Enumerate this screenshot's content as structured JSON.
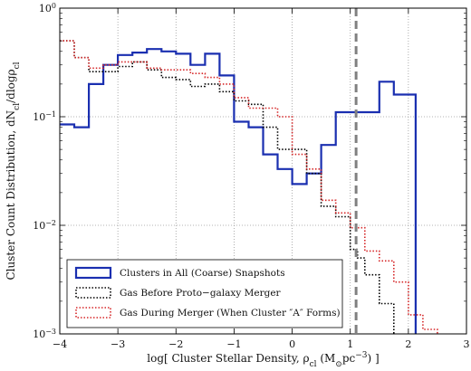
{
  "chart_data": {
    "type": "line",
    "step": true,
    "xlabel": "log[ Cluster Stellar Density, ρ",
    "xlabel_sub": "cl",
    "xlabel_units": " (M",
    "xlabel_units_sub": "⊙",
    "xlabel_units_tail": "pc",
    "xlabel_units_sup": "−3",
    "xlabel_close": ") ]",
    "ylabel": "Cluster Count Distribution, dN",
    "ylabel_sub1": "cl",
    "ylabel_mid": "/dlogρ",
    "ylabel_sub2": "cl",
    "xlim": [
      -4,
      3
    ],
    "ylim": [
      0.001,
      1
    ],
    "yscale": "log",
    "grid": true,
    "legend_position": "lower-left",
    "x_ticks": [
      -4,
      -3,
      -2,
      -1,
      0,
      1,
      2,
      3
    ],
    "x_tick_labels": [
      "−4",
      "−3",
      "−2",
      "−1",
      "0",
      "1",
      "2",
      "3"
    ],
    "y_ticks": [
      {
        "value": 0.001,
        "base": "10",
        "exp": "−3"
      },
      {
        "value": 0.01,
        "base": "10",
        "exp": "−2"
      },
      {
        "value": 0.1,
        "base": "10",
        "exp": "−1"
      },
      {
        "value": 1,
        "base": "10",
        "exp": "0"
      }
    ],
    "vline": {
      "x": 1.1,
      "color": "#808080",
      "style": "dashed"
    },
    "series": [
      {
        "name": "Clusters in All (Coarse) Snapshots",
        "color": "#1a2fb0",
        "dash": "solid",
        "edges": [
          -4.0,
          -3.75,
          -3.5,
          -3.25,
          -3.0,
          -2.75,
          -2.5,
          -2.25,
          -2.0,
          -1.75,
          -1.5,
          -1.25,
          -1.0,
          -0.75,
          -0.5,
          -0.25,
          0.0,
          0.25,
          0.5,
          0.75,
          1.0,
          1.25,
          1.5,
          1.75,
          2.0,
          2.125
        ],
        "values": [
          0.085,
          0.08,
          0.2,
          0.3,
          0.37,
          0.39,
          0.42,
          0.4,
          0.38,
          0.3,
          0.38,
          0.24,
          0.09,
          0.08,
          0.045,
          0.033,
          0.024,
          0.03,
          0.055,
          0.11,
          0.11,
          0.11,
          0.21,
          0.16,
          0.16
        ]
      },
      {
        "name": "Gas Before Proto−galaxy Merger",
        "color": "#000000",
        "dash": "dotted",
        "edges": [
          -4.0,
          -3.75,
          -3.5,
          -3.25,
          -3.0,
          -2.75,
          -2.5,
          -2.25,
          -2.0,
          -1.75,
          -1.5,
          -1.25,
          -1.0,
          -0.75,
          -0.5,
          -0.25,
          0.0,
          0.25,
          0.5,
          0.75,
          1.0,
          1.125,
          1.25,
          1.5,
          1.75
        ],
        "values": [
          0.5,
          0.35,
          0.26,
          0.26,
          0.29,
          0.32,
          0.27,
          0.23,
          0.22,
          0.19,
          0.2,
          0.17,
          0.14,
          0.13,
          0.08,
          0.05,
          0.05,
          0.03,
          0.015,
          0.012,
          0.006,
          0.005,
          0.0035,
          0.0019
        ]
      },
      {
        "name": "Gas During Merger (When Cluster ″A″ Forms)",
        "color": "#d62728",
        "dash": "dotted",
        "edges": [
          -4.0,
          -3.75,
          -3.5,
          -3.25,
          -3.0,
          -2.75,
          -2.5,
          -2.25,
          -2.0,
          -1.75,
          -1.5,
          -1.25,
          -1.0,
          -0.75,
          -0.5,
          -0.25,
          0.0,
          0.25,
          0.5,
          0.75,
          1.0,
          1.25,
          1.5,
          1.75,
          2.0,
          2.25,
          2.5
        ],
        "values": [
          0.5,
          0.35,
          0.28,
          0.3,
          0.32,
          0.32,
          0.28,
          0.27,
          0.27,
          0.25,
          0.23,
          0.2,
          0.15,
          0.12,
          0.12,
          0.1,
          0.045,
          0.033,
          0.017,
          0.013,
          0.0095,
          0.0058,
          0.0047,
          0.003,
          0.0015,
          0.0011
        ]
      }
    ]
  }
}
